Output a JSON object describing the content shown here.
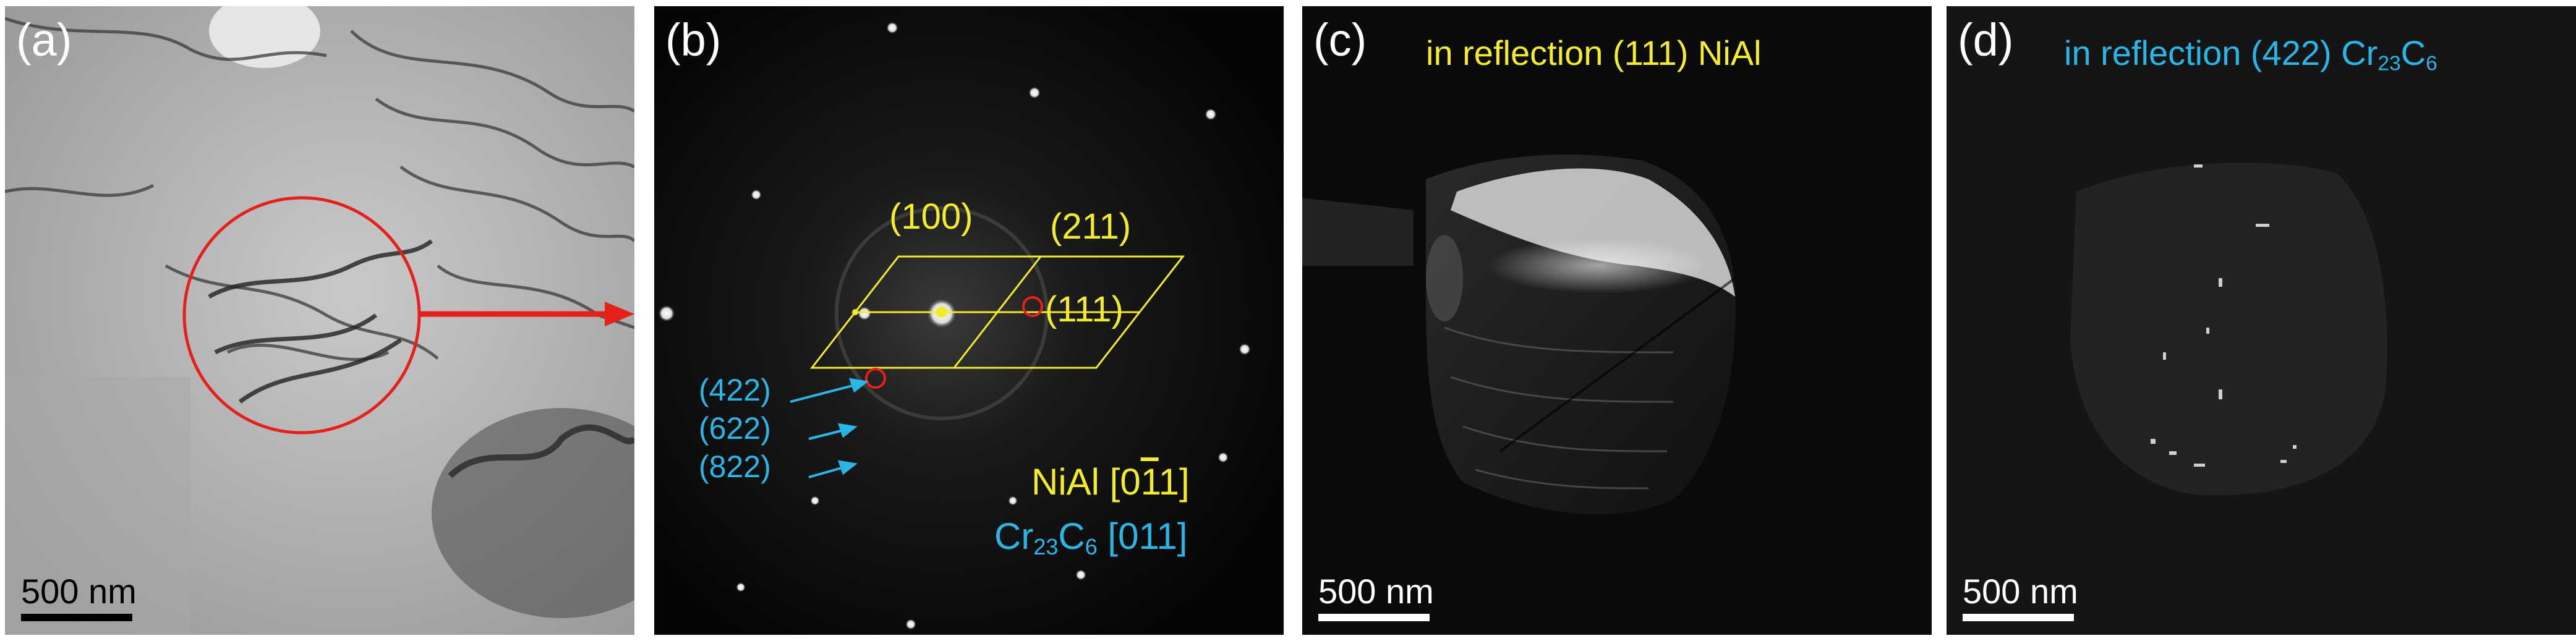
{
  "panels": {
    "a": {
      "label": "(a)",
      "scale_bar": "500 nm"
    },
    "b": {
      "label": "(b)",
      "nial_indices": [
        "(100)",
        "(211)",
        "(111)"
      ],
      "carbide_indices": [
        "(422)",
        "(622)",
        "(822)"
      ],
      "zone_nial_prefix": "NiAl [0",
      "zone_nial_bar1": "1",
      "zone_nial_bar2": "1",
      "zone_nial_suffix": "]",
      "zone_carbide_cr": "Cr",
      "zone_carbide_sub1": "23",
      "zone_carbide_c": "C",
      "zone_carbide_sub2": "6",
      "zone_carbide_suffix": " [011]"
    },
    "c": {
      "label": "(c)",
      "title": "in reflection (111) NiAl",
      "scale_bar": "500 nm"
    },
    "d": {
      "label": "(d)",
      "title_prefix": "in reflection (422) Cr",
      "title_sub1": "23",
      "title_c": "C",
      "title_sub2": "6",
      "scale_bar": "500 nm"
    }
  },
  "colors": {
    "yellow": "#f2ec2a",
    "cyan": "#29b6e6",
    "red": "#e8201c",
    "white": "#ffffff",
    "black": "#000000"
  }
}
